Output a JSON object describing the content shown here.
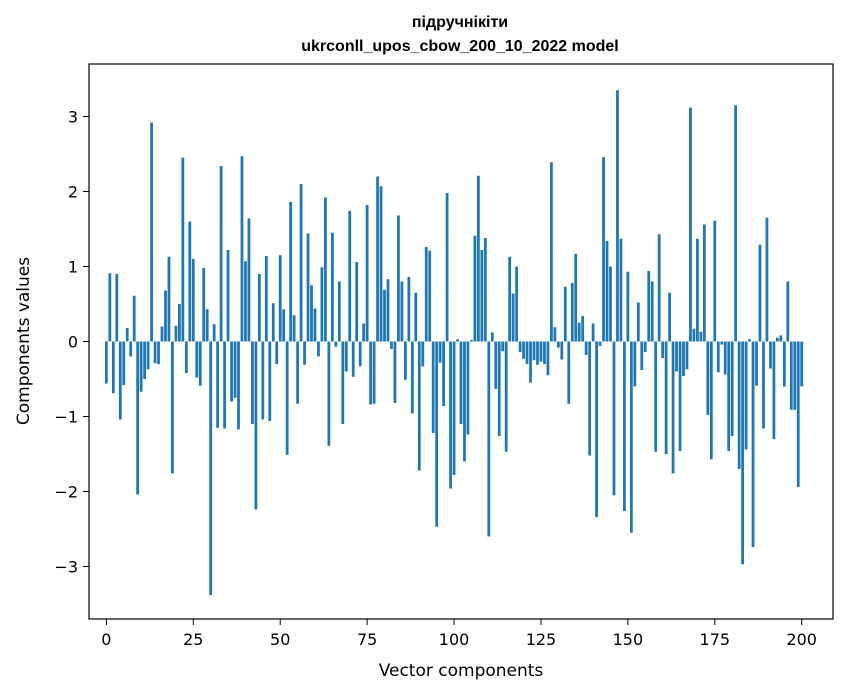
{
  "chart_data": {
    "type": "bar",
    "title_line1": "підручнікіти",
    "title_line2": "ukrconll_upos_cbow_200_10_2022 model",
    "xlabel": "Vector components",
    "ylabel": "Components values",
    "xlim": [
      -5,
      209
    ],
    "ylim": [
      -3.7,
      3.7
    ],
    "xticks": [
      0,
      25,
      50,
      75,
      100,
      125,
      150,
      175,
      200
    ],
    "xtick_labels": [
      "0",
      "25",
      "50",
      "75",
      "100",
      "125",
      "150",
      "175",
      "200"
    ],
    "yticks": [
      -3,
      -2,
      -1,
      0,
      1,
      2,
      3
    ],
    "ytick_labels": [
      "−3",
      "−2",
      "−1",
      "0",
      "1",
      "2",
      "3"
    ],
    "bar_color": "#1f77b4",
    "grid": false,
    "values": [
      -0.56,
      0.91,
      -0.69,
      0.9,
      -1.04,
      -0.58,
      0.18,
      -0.2,
      0.61,
      -2.04,
      -0.67,
      -0.5,
      -0.37,
      2.92,
      -0.29,
      -0.3,
      0.2,
      0.68,
      1.13,
      -1.76,
      0.21,
      0.5,
      2.45,
      -0.42,
      1.6,
      1.1,
      -0.48,
      -0.59,
      0.98,
      0.43,
      -3.38,
      0.23,
      -1.15,
      2.34,
      -1.16,
      1.22,
      -0.8,
      -0.75,
      -1.17,
      2.47,
      1.07,
      1.64,
      -1.1,
      -2.24,
      0.9,
      -1.04,
      1.14,
      -1.06,
      0.51,
      -0.3,
      1.15,
      0.43,
      -1.51,
      1.86,
      0.35,
      -0.83,
      2.1,
      -0.31,
      1.44,
      0.75,
      0.44,
      -0.2,
      0.99,
      1.92,
      -1.39,
      1.45,
      -0.07,
      0.8,
      -1.1,
      -0.4,
      1.74,
      -0.47,
      1.06,
      -0.33,
      0.24,
      1.82,
      -0.84,
      -0.83,
      2.2,
      2.07,
      0.69,
      0.83,
      -0.1,
      -0.82,
      1.68,
      0.8,
      -0.51,
      0.86,
      -0.96,
      0.65,
      -1.72,
      -0.33,
      1.26,
      1.21,
      -1.22,
      -2.47,
      -0.28,
      -0.86,
      1.98,
      -1.96,
      -1.78,
      0.03,
      -1.1,
      -1.6,
      -1.24,
      0.02,
      1.41,
      2.21,
      1.22,
      1.38,
      -2.6,
      0.12,
      -0.63,
      -1.26,
      -0.13,
      -1.47,
      1.13,
      0.64,
      1.0,
      -0.14,
      -0.23,
      -0.3,
      -0.55,
      -0.25,
      -0.31,
      -0.27,
      -0.3,
      -0.45,
      2.39,
      0.19,
      -0.08,
      -0.24,
      0.73,
      -0.83,
      0.78,
      1.17,
      0.25,
      0.34,
      -0.18,
      -1.52,
      0.24,
      -2.34,
      -0.06,
      2.46,
      1.34,
      1.0,
      -2.05,
      3.35,
      1.37,
      -2.26,
      0.93,
      -2.55,
      -0.6,
      0.52,
      -0.38,
      -0.14,
      0.94,
      0.8,
      -1.47,
      1.43,
      -0.22,
      -1.5,
      0.65,
      -1.76,
      -0.4,
      -1.46,
      -0.46,
      -0.37,
      3.12,
      0.17,
      1.37,
      0.13,
      1.56,
      -0.98,
      -1.57,
      1.61,
      -0.41,
      -0.04,
      -0.44,
      -1.46,
      -1.26,
      3.15,
      -1.7,
      -2.97,
      -1.44,
      0.03,
      -2.74,
      -0.59,
      1.29,
      -1.16,
      1.65,
      -0.36,
      -1.3,
      0.05,
      0.08,
      -0.6,
      0.8,
      -0.91,
      -0.91,
      -1.94,
      -0.6
    ]
  }
}
